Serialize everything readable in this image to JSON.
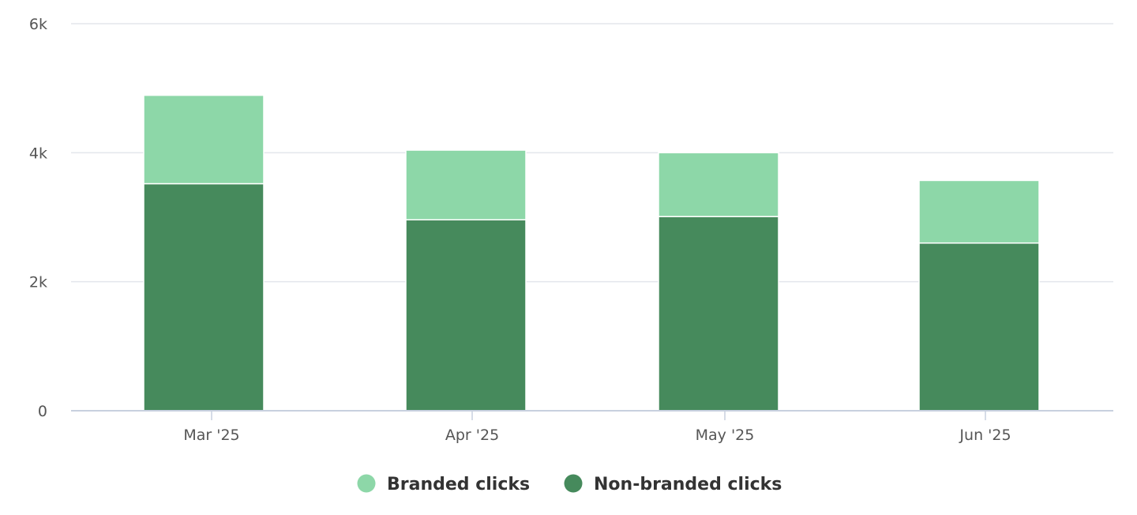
{
  "chart_data": {
    "type": "bar",
    "stacked": true,
    "categories": [
      "Mar '25",
      "Apr '25",
      "May '25",
      "Jun '25"
    ],
    "series": [
      {
        "name": "Non-branded clicks",
        "color": "#468a5c",
        "values": [
          3520,
          2960,
          3010,
          2600
        ]
      },
      {
        "name": "Branded clicks",
        "color": "#8dd7a8",
        "values": [
          1370,
          1080,
          990,
          970
        ]
      }
    ],
    "ylim": [
      0,
      6000
    ],
    "yticks": [
      0,
      2000,
      4000,
      6000
    ],
    "ytick_labels": [
      "0",
      "2k",
      "4k",
      "6k"
    ],
    "grid": true,
    "legend_position": "bottom",
    "legend_order": [
      "Branded clicks",
      "Non-branded clicks"
    ]
  }
}
